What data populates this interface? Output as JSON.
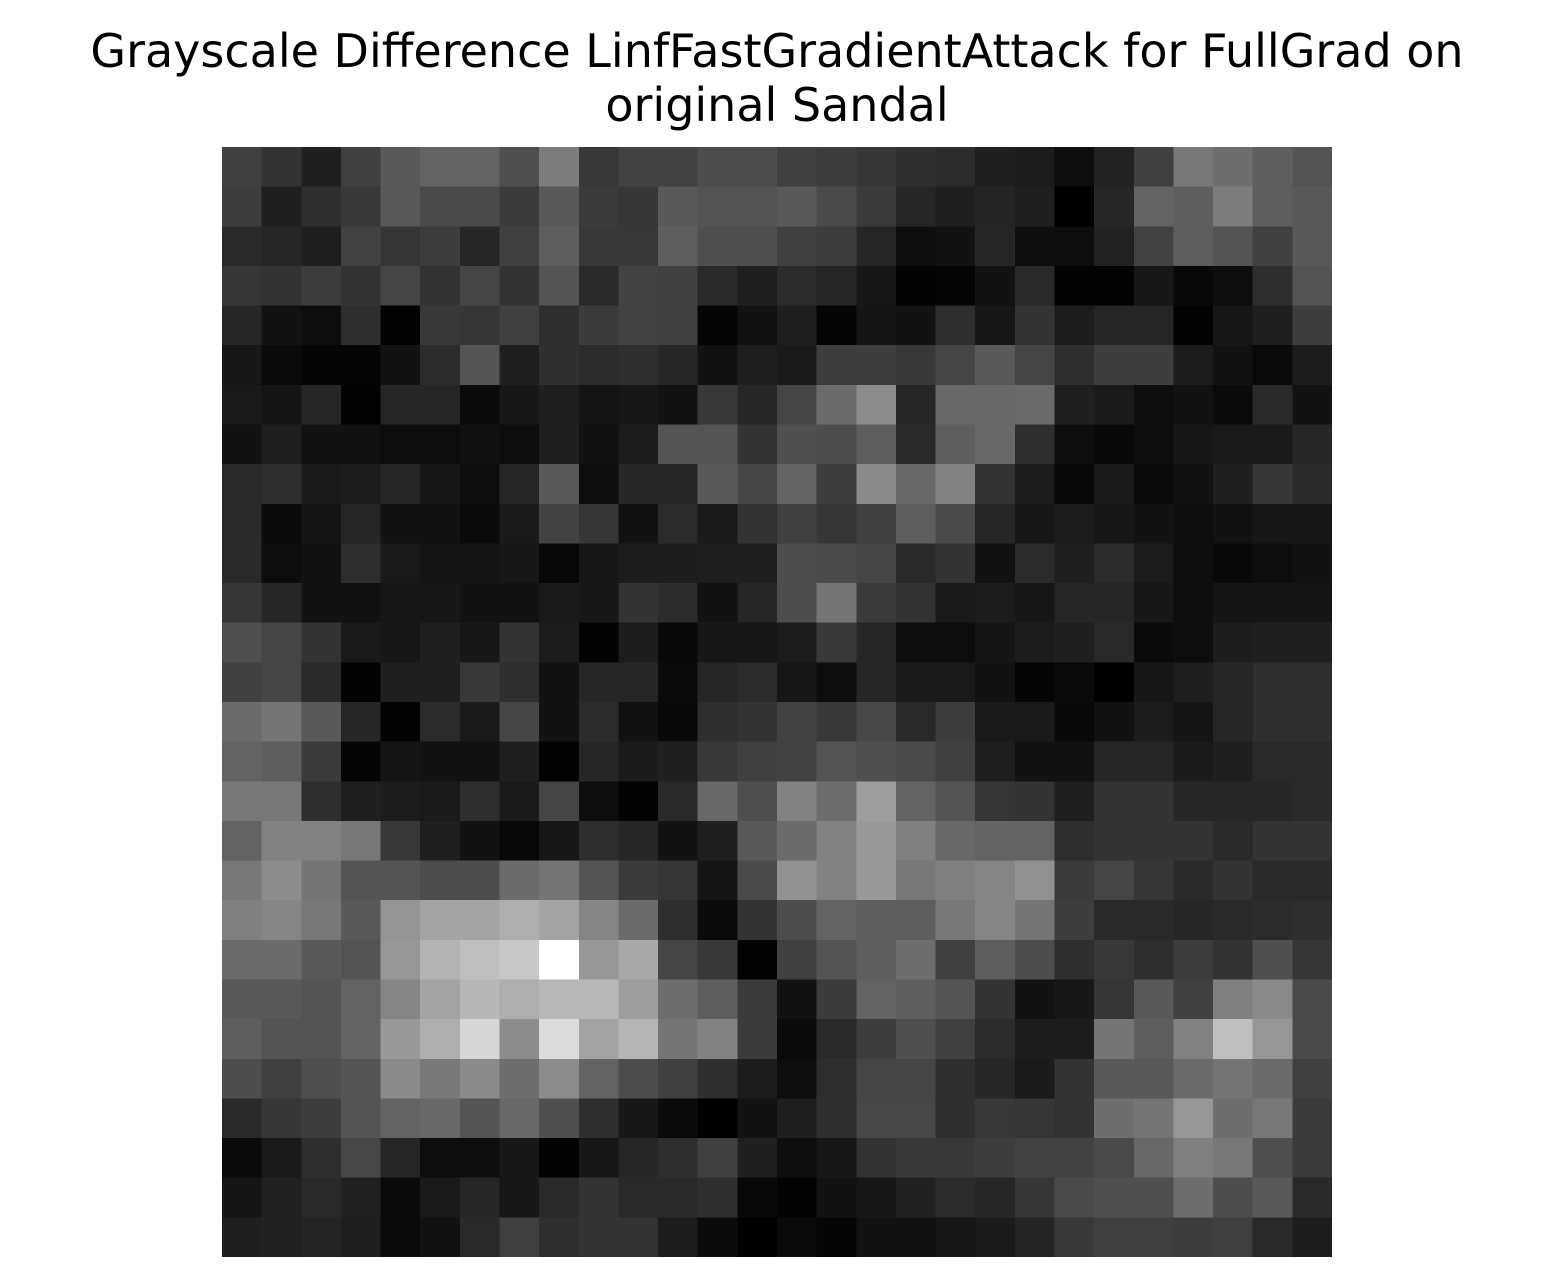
{
  "chart_data": {
    "type": "heatmap",
    "title_lines": [
      "Grayscale Difference LinfFastGradientAttack for FullGrad on",
      "original Sandal"
    ],
    "colormap": "gray",
    "axes_visible": false,
    "vmin": 0,
    "vmax": 255,
    "rows": 28,
    "cols": 28,
    "values": [
      [
        64,
        51,
        31,
        64,
        89,
        99,
        99,
        79,
        124,
        56,
        66,
        66,
        77,
        77,
        64,
        61,
        54,
        48,
        43,
        31,
        28,
        13,
        34,
        64,
        120,
        110,
        94,
        84
      ],
      [
        61,
        31,
        46,
        56,
        89,
        74,
        74,
        59,
        89,
        59,
        54,
        89,
        84,
        84,
        89,
        74,
        59,
        38,
        31,
        36,
        31,
        0,
        38,
        99,
        94,
        124,
        94,
        89
      ],
      [
        41,
        38,
        31,
        66,
        54,
        61,
        38,
        64,
        94,
        56,
        56,
        94,
        79,
        79,
        64,
        61,
        38,
        13,
        18,
        38,
        13,
        13,
        34,
        66,
        94,
        84,
        64,
        89
      ],
      [
        54,
        51,
        61,
        51,
        69,
        51,
        69,
        51,
        84,
        41,
        66,
        64,
        41,
        31,
        43,
        38,
        23,
        3,
        5,
        18,
        41,
        3,
        3,
        23,
        8,
        13,
        46,
        84
      ],
      [
        38,
        18,
        13,
        46,
        3,
        56,
        54,
        64,
        46,
        59,
        66,
        64,
        5,
        18,
        31,
        5,
        21,
        18,
        46,
        23,
        51,
        28,
        38,
        38,
        3,
        23,
        31,
        61
      ],
      [
        23,
        10,
        5,
        5,
        18,
        43,
        84,
        31,
        48,
        43,
        46,
        38,
        18,
        31,
        26,
        61,
        61,
        56,
        69,
        89,
        69,
        46,
        61,
        61,
        28,
        18,
        10,
        28
      ],
      [
        26,
        21,
        38,
        3,
        38,
        38,
        10,
        23,
        31,
        21,
        23,
        18,
        56,
        38,
        69,
        107,
        140,
        38,
        104,
        104,
        107,
        31,
        26,
        13,
        18,
        10,
        41,
        18
      ],
      [
        18,
        31,
        18,
        18,
        13,
        13,
        18,
        13,
        31,
        18,
        28,
        84,
        84,
        51,
        79,
        77,
        94,
        41,
        94,
        104,
        46,
        13,
        8,
        13,
        23,
        26,
        26,
        38
      ],
      [
        41,
        46,
        26,
        28,
        38,
        23,
        13,
        38,
        89,
        13,
        38,
        38,
        89,
        69,
        99,
        61,
        138,
        104,
        130,
        51,
        28,
        8,
        26,
        10,
        18,
        31,
        54,
        41
      ],
      [
        41,
        10,
        21,
        38,
        18,
        18,
        10,
        26,
        66,
        54,
        18,
        43,
        26,
        51,
        64,
        54,
        64,
        94,
        74,
        38,
        23,
        28,
        23,
        18,
        13,
        18,
        23,
        23
      ],
      [
        41,
        13,
        18,
        46,
        26,
        21,
        21,
        23,
        8,
        23,
        28,
        28,
        31,
        31,
        77,
        74,
        69,
        41,
        51,
        18,
        43,
        31,
        43,
        28,
        13,
        8,
        13,
        18
      ],
      [
        54,
        38,
        18,
        18,
        23,
        23,
        18,
        18,
        26,
        23,
        51,
        43,
        18,
        38,
        77,
        117,
        59,
        51,
        26,
        28,
        23,
        38,
        38,
        23,
        13,
        21,
        21,
        21
      ],
      [
        79,
        69,
        51,
        26,
        23,
        31,
        23,
        51,
        28,
        3,
        28,
        8,
        23,
        23,
        28,
        56,
        38,
        13,
        13,
        21,
        28,
        31,
        41,
        10,
        13,
        28,
        31,
        31
      ],
      [
        64,
        69,
        41,
        3,
        31,
        31,
        56,
        46,
        18,
        38,
        38,
        10,
        38,
        43,
        23,
        13,
        38,
        26,
        26,
        18,
        5,
        10,
        0,
        23,
        31,
        38,
        46,
        46
      ],
      [
        107,
        117,
        89,
        38,
        3,
        43,
        26,
        69,
        18,
        43,
        18,
        8,
        46,
        51,
        66,
        56,
        71,
        41,
        61,
        26,
        26,
        8,
        18,
        28,
        21,
        38,
        46,
        46
      ],
      [
        99,
        94,
        59,
        5,
        21,
        18,
        18,
        31,
        3,
        38,
        26,
        31,
        56,
        64,
        66,
        84,
        79,
        74,
        64,
        31,
        18,
        18,
        38,
        38,
        26,
        31,
        41,
        41
      ],
      [
        120,
        120,
        46,
        31,
        28,
        26,
        46,
        26,
        69,
        13,
        3,
        41,
        104,
        79,
        130,
        110,
        158,
        99,
        84,
        54,
        51,
        31,
        51,
        51,
        38,
        38,
        38,
        41
      ],
      [
        99,
        130,
        130,
        120,
        56,
        31,
        18,
        8,
        23,
        46,
        38,
        18,
        31,
        89,
        107,
        130,
        153,
        128,
        104,
        99,
        99,
        46,
        51,
        51,
        51,
        41,
        51,
        51
      ],
      [
        120,
        140,
        117,
        84,
        84,
        77,
        77,
        107,
        117,
        84,
        59,
        54,
        21,
        74,
        145,
        130,
        153,
        120,
        128,
        133,
        145,
        59,
        69,
        54,
        41,
        51,
        41,
        41
      ],
      [
        128,
        133,
        120,
        89,
        148,
        164,
        164,
        174,
        163,
        133,
        107,
        46,
        10,
        51,
        77,
        99,
        94,
        94,
        120,
        133,
        117,
        61,
        41,
        41,
        38,
        41,
        43,
        46
      ],
      [
        107,
        107,
        89,
        84,
        150,
        179,
        191,
        199,
        255,
        150,
        168,
        69,
        56,
        3,
        64,
        84,
        94,
        110,
        64,
        94,
        77,
        46,
        56,
        46,
        61,
        51,
        79,
        54
      ],
      [
        89,
        89,
        84,
        99,
        133,
        163,
        183,
        174,
        184,
        184,
        158,
        110,
        94,
        59,
        18,
        59,
        99,
        94,
        84,
        51,
        18,
        23,
        54,
        89,
        64,
        128,
        138,
        74
      ],
      [
        94,
        84,
        84,
        99,
        153,
        174,
        214,
        140,
        219,
        163,
        181,
        117,
        130,
        59,
        10,
        41,
        61,
        79,
        64,
        43,
        28,
        28,
        117,
        94,
        130,
        191,
        150,
        74
      ],
      [
        77,
        64,
        79,
        84,
        138,
        120,
        138,
        110,
        140,
        99,
        77,
        64,
        46,
        28,
        13,
        46,
        69,
        69,
        46,
        38,
        26,
        51,
        89,
        89,
        107,
        117,
        107,
        64
      ],
      [
        41,
        54,
        61,
        84,
        99,
        104,
        84,
        104,
        79,
        46,
        23,
        10,
        0,
        18,
        31,
        46,
        71,
        71,
        46,
        56,
        54,
        51,
        110,
        117,
        150,
        110,
        120,
        59
      ],
      [
        10,
        26,
        46,
        71,
        38,
        13,
        13,
        23,
        3,
        23,
        38,
        46,
        64,
        31,
        13,
        23,
        51,
        56,
        56,
        61,
        66,
        66,
        74,
        104,
        128,
        120,
        79,
        59
      ],
      [
        21,
        33,
        41,
        33,
        10,
        26,
        38,
        23,
        41,
        51,
        41,
        41,
        46,
        8,
        3,
        18,
        23,
        33,
        43,
        38,
        54,
        74,
        79,
        79,
        110,
        77,
        89,
        41
      ],
      [
        31,
        33,
        36,
        31,
        10,
        18,
        41,
        64,
        46,
        51,
        51,
        28,
        10,
        0,
        10,
        5,
        18,
        18,
        23,
        26,
        36,
        56,
        64,
        64,
        61,
        64,
        41,
        28
      ]
    ]
  }
}
